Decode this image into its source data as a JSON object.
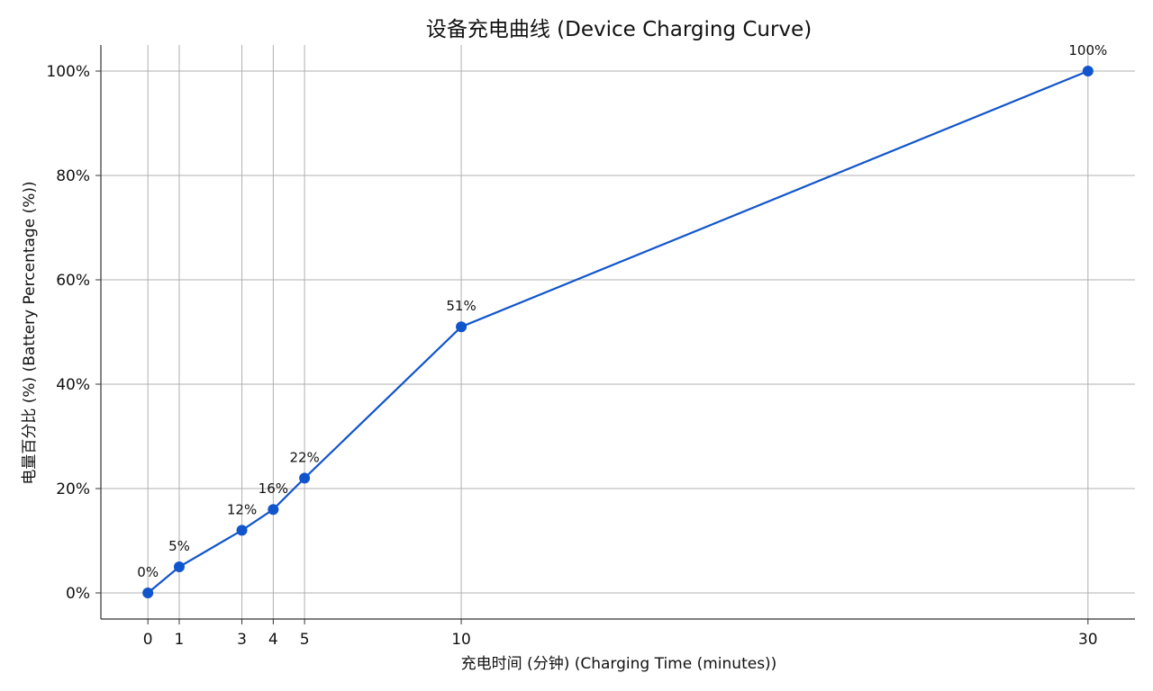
{
  "chart_data": {
    "type": "line",
    "title": "设备充电曲线 (Device Charging Curve)",
    "xlabel": "充电时间 (分钟) (Charging Time (minutes))",
    "ylabel": "电量百分比 (%) (Battery Percentage (%))",
    "x": [
      0,
      1,
      3,
      4,
      5,
      10,
      30
    ],
    "series": [
      {
        "values": [
          0,
          5,
          12,
          16,
          22,
          51,
          100
        ]
      }
    ],
    "data_labels": [
      "0%",
      "5%",
      "12%",
      "16%",
      "22%",
      "51%",
      "100%"
    ],
    "x_ticks": [
      0,
      1,
      3,
      4,
      5,
      10,
      30
    ],
    "x_tick_labels": [
      "0",
      "1",
      "3",
      "4",
      "5",
      "10",
      "30"
    ],
    "y_ticks": [
      0,
      20,
      40,
      60,
      80,
      100
    ],
    "y_tick_labels": [
      "0%",
      "20%",
      "40%",
      "60%",
      "80%",
      "100%"
    ],
    "xlim": [
      -1.5,
      31.5
    ],
    "ylim": [
      -5,
      105
    ],
    "grid": true,
    "line_color": "#1155cc",
    "grid_color": "#b0b0b0",
    "axis_color": "#333333"
  }
}
